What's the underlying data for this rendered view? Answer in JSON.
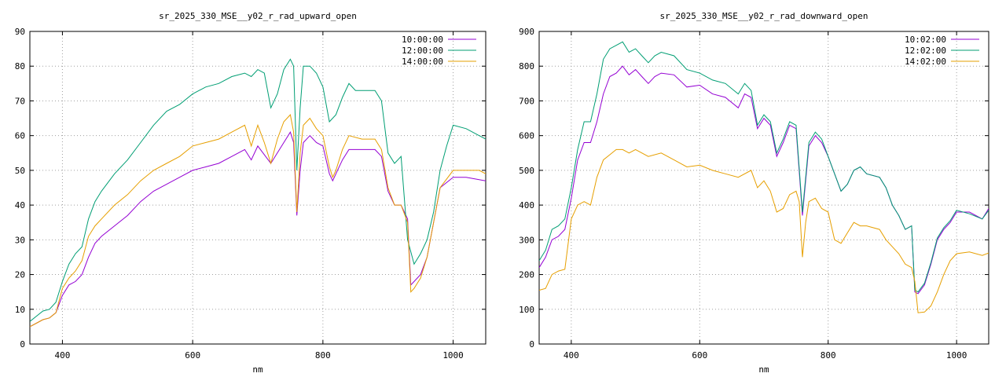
{
  "chart_data": [
    {
      "type": "line",
      "title": "sr_2025_330_MSE__y02_r_rad_upward_open",
      "xlabel": "nm",
      "ylabel": "",
      "xlim": [
        350,
        1050
      ],
      "ylim": [
        0,
        90
      ],
      "xticks": [
        400,
        600,
        800,
        1000
      ],
      "yticks": [
        0,
        10,
        20,
        30,
        40,
        50,
        60,
        70,
        80,
        90
      ],
      "grid": true,
      "legend_position": "top-right",
      "series": [
        {
          "name": "10:00:00",
          "color": "#9400d3",
          "x": [
            350,
            360,
            370,
            380,
            390,
            400,
            410,
            420,
            430,
            440,
            450,
            460,
            480,
            500,
            520,
            540,
            560,
            580,
            600,
            620,
            640,
            660,
            680,
            690,
            700,
            720,
            740,
            750,
            755,
            760,
            765,
            770,
            780,
            790,
            800,
            810,
            815,
            820,
            830,
            840,
            860,
            880,
            890,
            900,
            910,
            920,
            930,
            935,
            940,
            950,
            960,
            970,
            980,
            1000,
            1020,
            1050
          ],
          "values": [
            5,
            6,
            7,
            7.5,
            9,
            14,
            17,
            18,
            20,
            25,
            29,
            31,
            34,
            37,
            41,
            44,
            46,
            48,
            50,
            51,
            52,
            54,
            56,
            53,
            57,
            52,
            58,
            61,
            58,
            37,
            50,
            58,
            60,
            58,
            57,
            49,
            47,
            49,
            53,
            56,
            56,
            56,
            54,
            44,
            40,
            40,
            36,
            17,
            18,
            20,
            25,
            35,
            45,
            48,
            48,
            47
          ]
        },
        {
          "name": "12:00:00",
          "color": "#009e73",
          "x": [
            350,
            360,
            370,
            380,
            390,
            400,
            410,
            420,
            430,
            440,
            450,
            460,
            480,
            500,
            520,
            540,
            560,
            580,
            600,
            620,
            640,
            660,
            680,
            690,
            700,
            710,
            720,
            730,
            740,
            750,
            755,
            760,
            765,
            770,
            780,
            790,
            800,
            810,
            820,
            830,
            840,
            850,
            860,
            880,
            890,
            900,
            910,
            920,
            930,
            940,
            950,
            960,
            970,
            980,
            990,
            1000,
            1020,
            1040,
            1050
          ],
          "values": [
            6.5,
            8,
            9.5,
            10,
            12,
            18,
            23,
            26,
            28,
            36,
            41,
            44,
            49,
            53,
            58,
            63,
            67,
            69,
            72,
            74,
            75,
            77,
            78,
            77,
            79,
            78,
            68,
            72,
            79,
            82,
            80,
            50,
            68,
            80,
            80,
            78,
            74,
            64,
            66,
            71,
            75,
            73,
            73,
            73,
            70,
            55,
            52,
            54,
            30,
            23,
            26,
            30,
            38,
            50,
            57,
            63,
            62,
            60,
            59
          ]
        },
        {
          "name": "14:00:00",
          "color": "#e69f00",
          "x": [
            350,
            360,
            370,
            380,
            390,
            400,
            410,
            420,
            430,
            440,
            450,
            460,
            480,
            500,
            520,
            540,
            560,
            580,
            600,
            620,
            640,
            660,
            680,
            690,
            700,
            710,
            720,
            730,
            740,
            750,
            755,
            760,
            765,
            770,
            780,
            790,
            800,
            810,
            815,
            820,
            830,
            840,
            860,
            880,
            890,
            900,
            910,
            920,
            930,
            935,
            940,
            950,
            960,
            970,
            980,
            1000,
            1020,
            1040,
            1050
          ],
          "values": [
            5,
            6,
            7,
            7.5,
            9,
            16,
            19,
            21,
            24,
            31,
            34,
            36,
            40,
            43,
            47,
            50,
            52,
            54,
            57,
            58,
            59,
            61,
            63,
            57,
            63,
            58,
            52,
            59,
            64,
            66,
            61,
            38,
            55,
            63,
            65,
            62,
            60,
            51,
            48,
            50,
            56,
            60,
            59,
            59,
            56,
            45,
            40,
            40,
            35,
            15,
            16,
            19,
            25,
            35,
            45,
            50,
            50,
            50,
            49
          ]
        }
      ]
    },
    {
      "type": "line",
      "title": "sr_2025_330_MSE__y02_r_rad_downward_open",
      "xlabel": "nm",
      "ylabel": "",
      "xlim": [
        350,
        1050
      ],
      "ylim": [
        0,
        900
      ],
      "xticks": [
        400,
        600,
        800,
        1000
      ],
      "yticks": [
        0,
        100,
        200,
        300,
        400,
        500,
        600,
        700,
        800,
        900
      ],
      "grid": true,
      "legend_position": "top-right",
      "series": [
        {
          "name": "10:02:00",
          "color": "#9400d3",
          "x": [
            350,
            360,
            370,
            380,
            390,
            400,
            410,
            420,
            430,
            440,
            450,
            460,
            470,
            480,
            490,
            500,
            510,
            520,
            530,
            540,
            560,
            580,
            600,
            620,
            640,
            660,
            670,
            680,
            690,
            700,
            710,
            720,
            730,
            740,
            750,
            760,
            770,
            780,
            790,
            800,
            810,
            820,
            830,
            840,
            850,
            860,
            880,
            890,
            900,
            910,
            920,
            930,
            935,
            940,
            950,
            960,
            970,
            980,
            990,
            1000,
            1020,
            1040,
            1050
          ],
          "values": [
            220,
            250,
            300,
            310,
            330,
            420,
            530,
            580,
            580,
            640,
            720,
            770,
            780,
            800,
            775,
            790,
            770,
            750,
            770,
            780,
            775,
            740,
            745,
            720,
            710,
            680,
            720,
            710,
            620,
            650,
            630,
            540,
            580,
            630,
            620,
            370,
            570,
            600,
            580,
            540,
            490,
            440,
            460,
            500,
            510,
            490,
            480,
            450,
            400,
            370,
            330,
            340,
            150,
            145,
            170,
            230,
            300,
            330,
            350,
            380,
            380,
            360,
            390
          ]
        },
        {
          "name": "12:02:00",
          "color": "#009e73",
          "x": [
            350,
            360,
            370,
            380,
            390,
            400,
            410,
            420,
            430,
            440,
            450,
            460,
            470,
            480,
            490,
            500,
            510,
            520,
            530,
            540,
            560,
            580,
            600,
            620,
            640,
            660,
            670,
            680,
            690,
            700,
            710,
            720,
            730,
            740,
            750,
            760,
            770,
            780,
            790,
            800,
            810,
            820,
            830,
            840,
            850,
            860,
            880,
            890,
            900,
            910,
            920,
            930,
            935,
            940,
            950,
            960,
            970,
            980,
            990,
            1000,
            1020,
            1040,
            1050
          ],
          "values": [
            240,
            270,
            330,
            340,
            360,
            450,
            560,
            640,
            640,
            720,
            820,
            850,
            860,
            870,
            840,
            850,
            830,
            810,
            830,
            840,
            830,
            790,
            780,
            760,
            750,
            720,
            750,
            730,
            630,
            660,
            640,
            550,
            590,
            640,
            630,
            380,
            580,
            610,
            590,
            540,
            490,
            440,
            460,
            500,
            510,
            490,
            480,
            450,
            400,
            370,
            330,
            340,
            155,
            150,
            175,
            235,
            305,
            335,
            355,
            385,
            375,
            360,
            385
          ]
        },
        {
          "name": "14:02:00",
          "color": "#e69f00",
          "x": [
            350,
            360,
            370,
            380,
            390,
            400,
            410,
            420,
            430,
            440,
            450,
            460,
            470,
            480,
            490,
            500,
            520,
            540,
            560,
            580,
            600,
            620,
            640,
            660,
            680,
            690,
            700,
            710,
            720,
            730,
            740,
            750,
            755,
            760,
            765,
            770,
            780,
            790,
            800,
            810,
            820,
            830,
            840,
            850,
            860,
            880,
            890,
            900,
            910,
            920,
            930,
            935,
            940,
            950,
            960,
            970,
            980,
            990,
            1000,
            1020,
            1040,
            1050
          ],
          "values": [
            155,
            160,
            200,
            210,
            215,
            360,
            400,
            410,
            400,
            480,
            530,
            545,
            560,
            560,
            550,
            560,
            540,
            550,
            530,
            510,
            515,
            500,
            490,
            480,
            500,
            450,
            470,
            440,
            380,
            390,
            430,
            440,
            410,
            250,
            350,
            410,
            420,
            390,
            380,
            300,
            290,
            320,
            350,
            340,
            340,
            330,
            300,
            280,
            260,
            230,
            220,
            180,
            90,
            92,
            110,
            150,
            200,
            240,
            260,
            265,
            255,
            262
          ]
        }
      ]
    }
  ]
}
